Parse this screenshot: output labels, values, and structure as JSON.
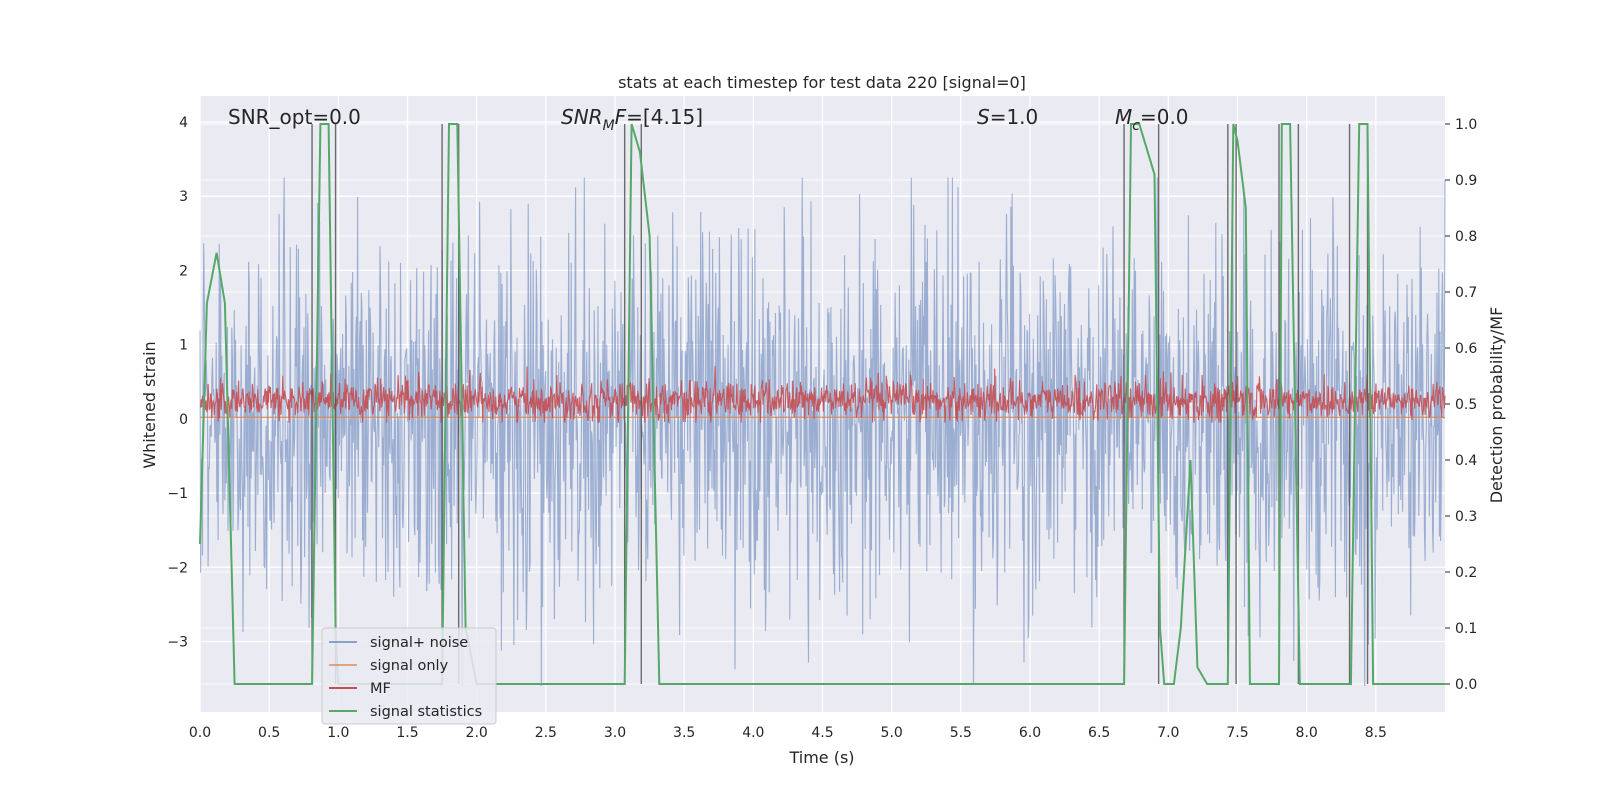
{
  "chart_data": {
    "type": "line",
    "title": "stats at each timestep for test data 220 [signal=0]",
    "xlabel": "Time (s)",
    "ylabel_left": "Whitened strain",
    "ylabel_right": "Detection probability/MF",
    "xlim": [
      0.0,
      9.0
    ],
    "ylim_left": [
      -3.95,
      4.35
    ],
    "ylim_right": [
      -0.05,
      1.05
    ],
    "x_ticks": [
      "0.0",
      "0.5",
      "1.0",
      "1.5",
      "2.0",
      "2.5",
      "3.0",
      "3.5",
      "4.0",
      "4.5",
      "5.0",
      "5.5",
      "6.0",
      "6.5",
      "7.0",
      "7.5",
      "8.0",
      "8.5"
    ],
    "x_tick_values": [
      0.0,
      0.5,
      1.0,
      1.5,
      2.0,
      2.5,
      3.0,
      3.5,
      4.0,
      4.5,
      5.0,
      5.5,
      6.0,
      6.5,
      7.0,
      7.5,
      8.0,
      8.5
    ],
    "y_left_ticks": [
      "−3",
      "−2",
      "−1",
      "0",
      "1",
      "2",
      "3",
      "4"
    ],
    "y_left_tick_values": [
      -3,
      -2,
      -1,
      0,
      1,
      2,
      3,
      4
    ],
    "y_right_ticks": [
      "0.0",
      "0.1",
      "0.2",
      "0.3",
      "0.4",
      "0.5",
      "0.6",
      "0.7",
      "0.8",
      "0.9",
      "1.0"
    ],
    "y_right_tick_values": [
      0.0,
      0.1,
      0.2,
      0.3,
      0.4,
      0.5,
      0.6,
      0.7,
      0.8,
      0.9,
      1.0
    ],
    "grid": true,
    "legend_position": "lower-left",
    "annotations": {
      "snr_opt": "SNR_opt=0.0",
      "snr_mf_base": "SNR",
      "snr_mf_sub": "M",
      "snr_mf_rest": "F=[4.15]",
      "s_label": "S",
      "s_value": "=1.0",
      "mc_base": "M",
      "mc_sub": "c",
      "mc_value": "=0.0"
    },
    "series": [
      {
        "name": "signal+ noise",
        "color": "#4c72b0",
        "axis": "left",
        "envelope": {
          "mean": 0.0,
          "typical_amplitude": 1.7,
          "max": 3.25,
          "min": -3.6
        }
      },
      {
        "name": "signal only",
        "color": "#dd8452",
        "axis": "left",
        "x": [
          0.0,
          9.0
        ],
        "y": [
          0.02,
          0.02
        ]
      },
      {
        "name": "MF",
        "color": "#c44e52",
        "axis": "left",
        "envelope": {
          "mean": 0.25,
          "typical_amplitude": 0.3,
          "max": 0.95,
          "min": -0.05
        }
      },
      {
        "name": "signal statistics",
        "color": "#55a868",
        "axis": "right",
        "x": [
          0.0,
          0.05,
          0.12,
          0.18,
          0.25,
          0.81,
          0.87,
          0.93,
          0.98,
          1.0,
          1.05,
          1.75,
          1.8,
          1.86,
          1.92,
          2.0,
          3.07,
          3.12,
          3.18,
          3.25,
          3.32,
          6.68,
          6.73,
          6.79,
          6.9,
          6.94,
          6.97,
          7.0,
          7.04,
          7.09,
          7.16,
          7.21,
          7.28,
          7.43,
          7.47,
          7.5,
          7.56,
          7.59,
          7.75,
          7.8,
          7.82,
          7.88,
          7.95,
          8.0,
          8.32,
          8.38,
          8.44,
          8.48,
          9.0
        ],
        "y": [
          0.25,
          0.68,
          0.77,
          0.68,
          0.0,
          0.0,
          1.0,
          1.0,
          0.1,
          0.0,
          0.0,
          0.0,
          1.0,
          1.0,
          0.1,
          0.0,
          0.0,
          1.0,
          0.95,
          0.8,
          0.0,
          0.0,
          1.0,
          1.0,
          0.91,
          0.1,
          0.0,
          0.0,
          0.0,
          0.1,
          0.4,
          0.03,
          0.0,
          0.0,
          1.0,
          0.97,
          0.85,
          0.0,
          0.0,
          0.0,
          1.0,
          1.0,
          0.0,
          0.0,
          0.0,
          1.0,
          1.0,
          0.0,
          0.0
        ]
      }
    ],
    "vertical_markers_x": [
      0.81,
      0.98,
      1.75,
      1.87,
      3.07,
      3.19,
      6.68,
      6.93,
      7.43,
      7.49,
      7.8,
      7.94,
      8.31,
      8.44
    ]
  }
}
